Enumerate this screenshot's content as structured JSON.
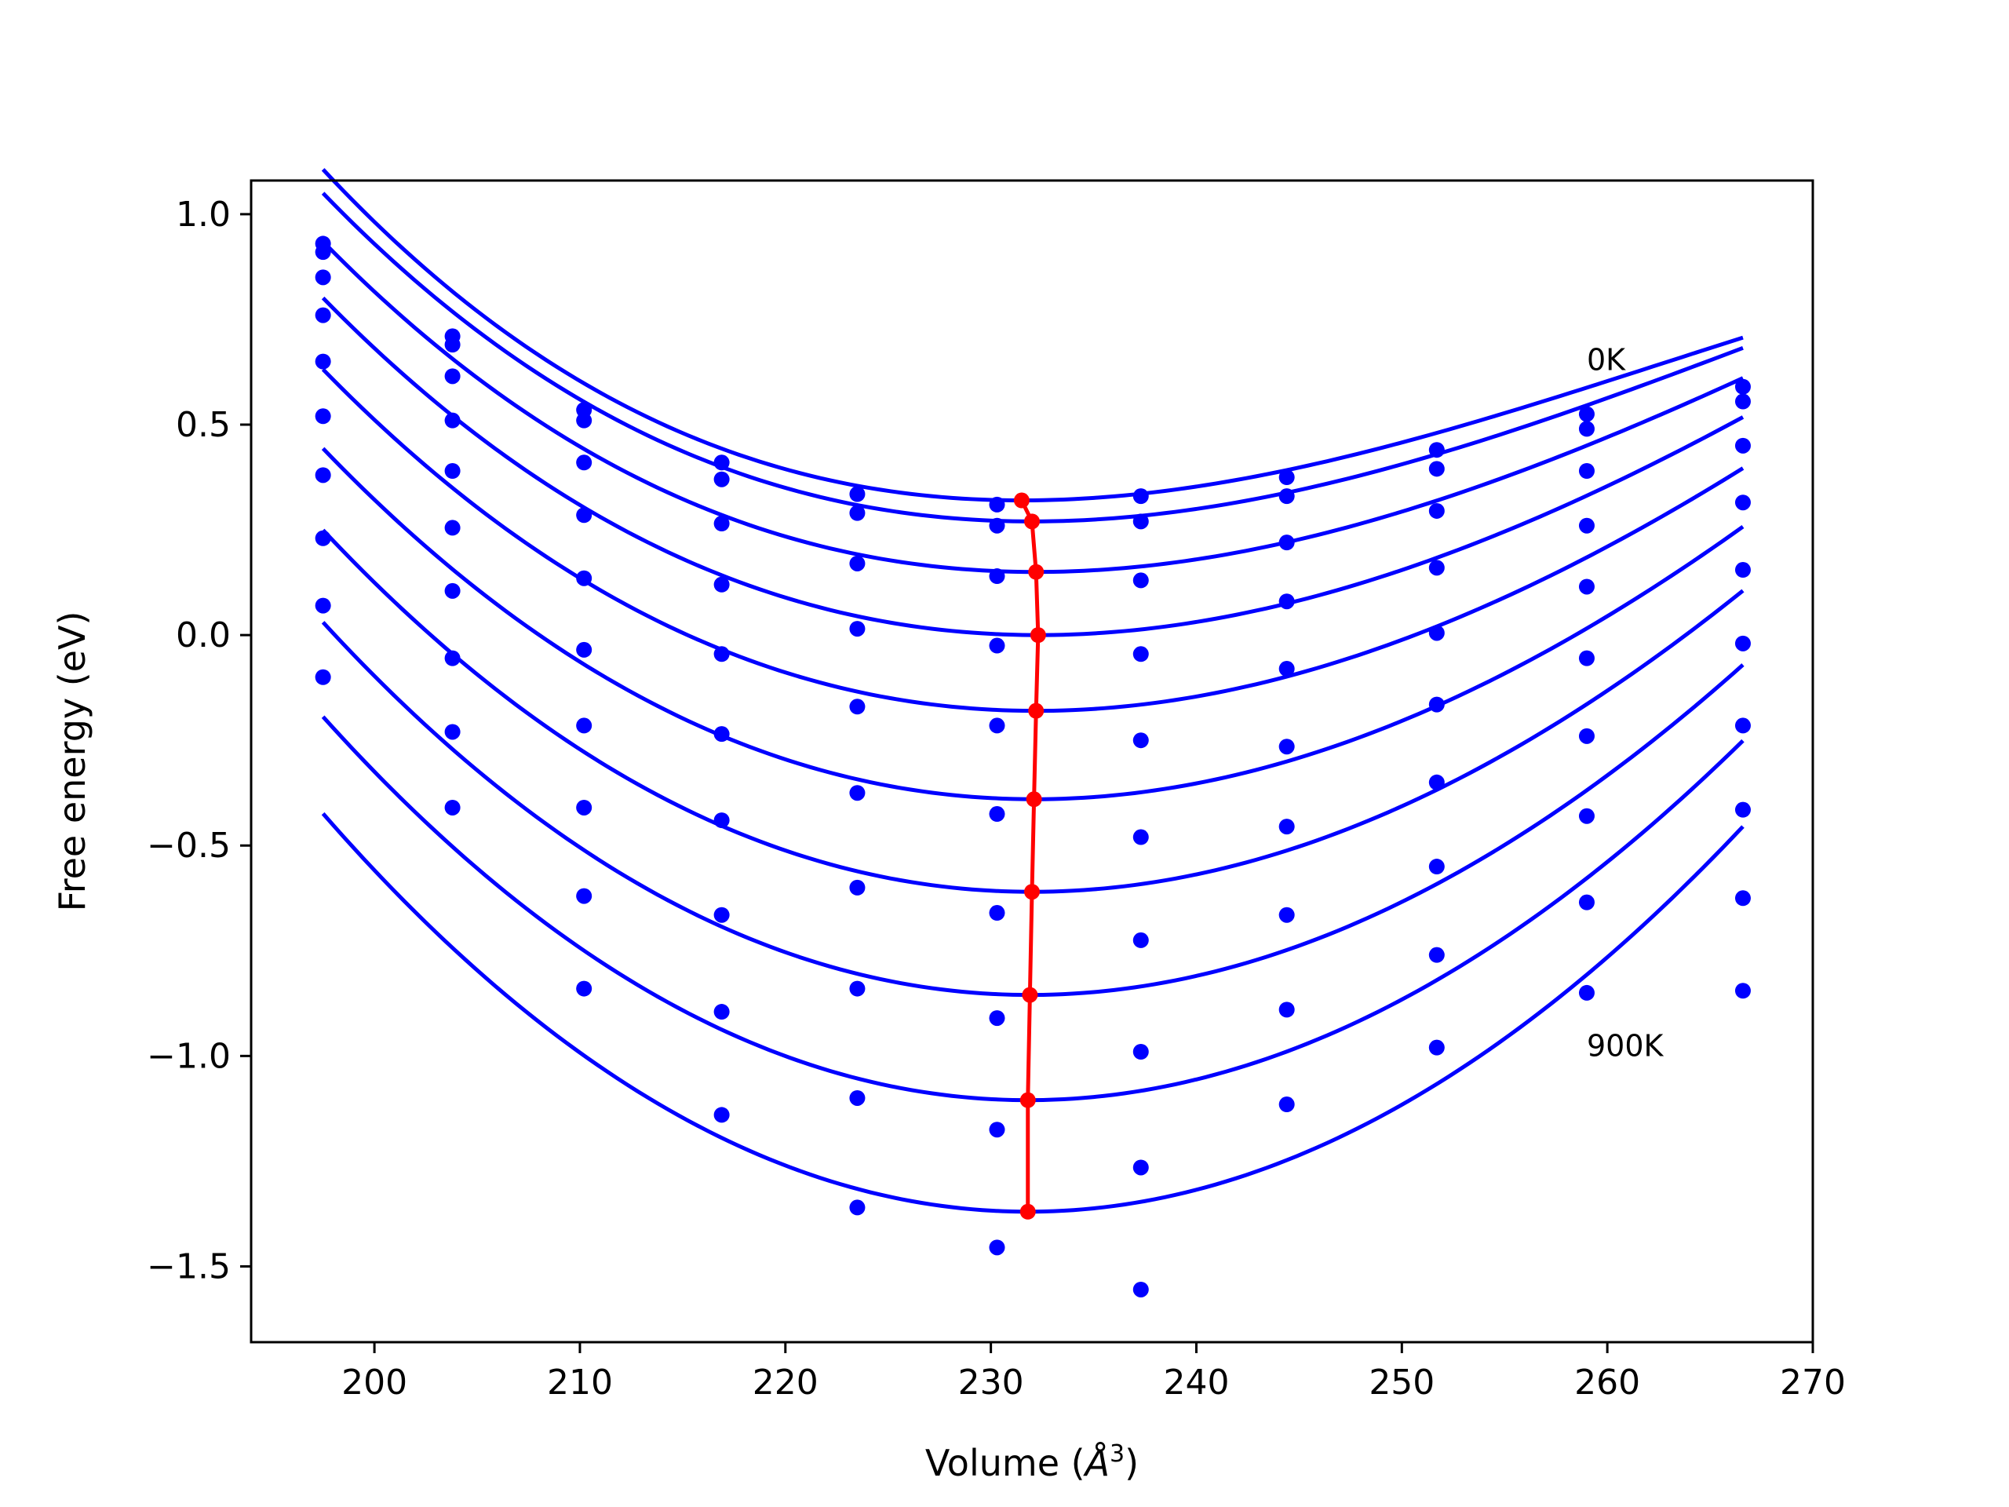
{
  "chart_data": {
    "type": "scatter",
    "xlabel_prefix": "Volume (",
    "xlabel_unit": "Å",
    "xlabel_exp": "3",
    "xlabel_suffix": ")",
    "ylabel": "Free energy (eV)",
    "xlim": [
      194,
      270
    ],
    "ylim": [
      -1.68,
      1.08
    ],
    "xticks": [
      200,
      210,
      220,
      230,
      240,
      250,
      260,
      270
    ],
    "yticks": [
      1.0,
      0.5,
      0.0,
      -0.5,
      -1.0,
      -1.5
    ],
    "ytick_labels": [
      "1.0",
      "0.5",
      "0.0",
      "−0.5",
      "−1.0",
      "−1.5"
    ],
    "grid": false,
    "annotations": [
      {
        "text": "0K",
        "x": 259.0,
        "y": 0.63
      },
      {
        "text": "900K",
        "x": 259.0,
        "y": -1.0
      }
    ],
    "point_color": "#0000ff",
    "curve_color": "#0000ff",
    "minimum_color": "#ff0000",
    "x": [
      197.5,
      203.8,
      210.2,
      216.9,
      223.5,
      230.3,
      237.3,
      244.4,
      251.7,
      259.0,
      266.6
    ],
    "points": [
      [
        0.93,
        0.71,
        0.535,
        0.41,
        0.335,
        0.31,
        0.33,
        0.375,
        0.44,
        0.525,
        0.59
      ],
      [
        0.91,
        0.69,
        0.51,
        0.37,
        0.29,
        0.26,
        0.27,
        0.33,
        0.395,
        0.49,
        0.555
      ],
      [
        0.85,
        0.615,
        0.41,
        0.265,
        0.17,
        0.14,
        0.13,
        0.22,
        0.295,
        0.39,
        0.45
      ],
      [
        0.76,
        0.51,
        0.285,
        0.12,
        0.015,
        -0.025,
        -0.045,
        0.08,
        0.16,
        0.26,
        0.315
      ],
      [
        0.65,
        0.39,
        0.135,
        -0.045,
        -0.17,
        -0.215,
        -0.25,
        -0.08,
        0.005,
        0.115,
        0.155
      ],
      [
        0.52,
        0.255,
        -0.035,
        -0.235,
        -0.375,
        -0.425,
        -0.48,
        -0.265,
        -0.165,
        -0.055,
        -0.02
      ],
      [
        0.38,
        0.105,
        -0.215,
        -0.44,
        -0.6,
        -0.66,
        -0.725,
        -0.455,
        -0.35,
        -0.24,
        -0.215
      ],
      [
        0.23,
        -0.055,
        -0.41,
        -0.665,
        -0.84,
        -0.91,
        -0.99,
        -0.665,
        -0.55,
        -0.43,
        -0.415
      ],
      [
        0.07,
        -0.23,
        -0.62,
        -0.895,
        -1.1,
        -1.175,
        -1.265,
        -0.89,
        -0.76,
        -0.635,
        -0.625
      ],
      [
        -0.1,
        -0.41,
        -0.84,
        -1.14,
        -1.36,
        -1.455,
        -1.555,
        -1.115,
        -0.98,
        -0.85,
        -0.845
      ]
    ],
    "fits": [
      {
        "x0": 231.5,
        "f0": 0.32,
        "a": 0.0005,
        "b": 5.3e-06
      },
      {
        "x0": 232.0,
        "f0": 0.27,
        "a": 0.0005,
        "b": 4.5e-06
      },
      {
        "x0": 232.2,
        "f0": 0.15,
        "a": 0.00052,
        "b": 3.8e-06
      },
      {
        "x0": 232.3,
        "f0": 0.0,
        "a": 0.00055,
        "b": 3.2e-06
      },
      {
        "x0": 232.2,
        "f0": -0.18,
        "a": 0.00058,
        "b": 2.7e-06
      },
      {
        "x0": 232.1,
        "f0": -0.39,
        "a": 0.00062,
        "b": 2.2e-06
      },
      {
        "x0": 232.0,
        "f0": -0.61,
        "a": 0.00066,
        "b": 1.8e-06
      },
      {
        "x0": 231.9,
        "f0": -0.855,
        "a": 0.0007,
        "b": 1.4e-06
      },
      {
        "x0": 231.8,
        "f0": -1.105,
        "a": 0.00074,
        "b": 1e-06
      },
      {
        "x0": 231.8,
        "f0": -1.37,
        "a": 0.00078,
        "b": 7e-07
      }
    ],
    "fit_range": [
      197.5,
      266.6
    ],
    "minima": [
      [
        231.5,
        0.32
      ],
      [
        232.0,
        0.27
      ],
      [
        232.2,
        0.15
      ],
      [
        232.3,
        0.0
      ],
      [
        232.2,
        -0.18
      ],
      [
        232.1,
        -0.39
      ],
      [
        232.0,
        -0.61
      ],
      [
        231.9,
        -0.855
      ],
      [
        231.8,
        -1.105
      ],
      [
        231.8,
        -1.37
      ]
    ]
  }
}
